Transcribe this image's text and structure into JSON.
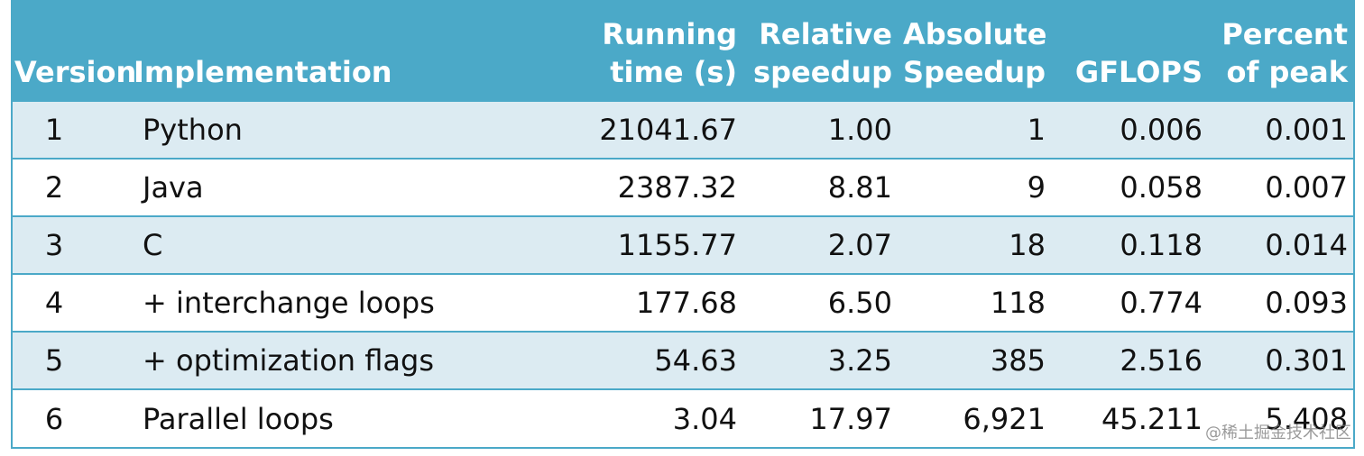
{
  "table": {
    "columns": [
      [
        "",
        "Version"
      ],
      [
        "",
        "Implementation"
      ],
      [
        "Running",
        "time (s)"
      ],
      [
        "Relative",
        "speedup"
      ],
      [
        "Absolute",
        "Speedup"
      ],
      [
        "",
        "GFLOPS"
      ],
      [
        "Percent",
        "of peak"
      ]
    ],
    "rows": [
      [
        "1",
        "Python",
        "21041.67",
        "1.00",
        "1",
        "0.006",
        "0.001"
      ],
      [
        "2",
        "Java",
        "2387.32",
        "8.81",
        "9",
        "0.058",
        "0.007"
      ],
      [
        "3",
        "C",
        "1155.77",
        "2.07",
        "18",
        "0.118",
        "0.014"
      ],
      [
        "4",
        "+ interchange loops",
        "177.68",
        "6.50",
        "118",
        "0.774",
        "0.093"
      ],
      [
        "5",
        "+ optimization flags",
        "54.63",
        "3.25",
        "385",
        "2.516",
        "0.301"
      ],
      [
        "6",
        "Parallel loops",
        "3.04",
        "17.97",
        "6,921",
        "45.211",
        "5.408"
      ]
    ]
  },
  "watermark": "@稀土掘金技术社区",
  "colors": {
    "header_bg": "#4ba9c8",
    "row_alt_bg": "#dcebf2",
    "row_bg": "#ffffff"
  }
}
